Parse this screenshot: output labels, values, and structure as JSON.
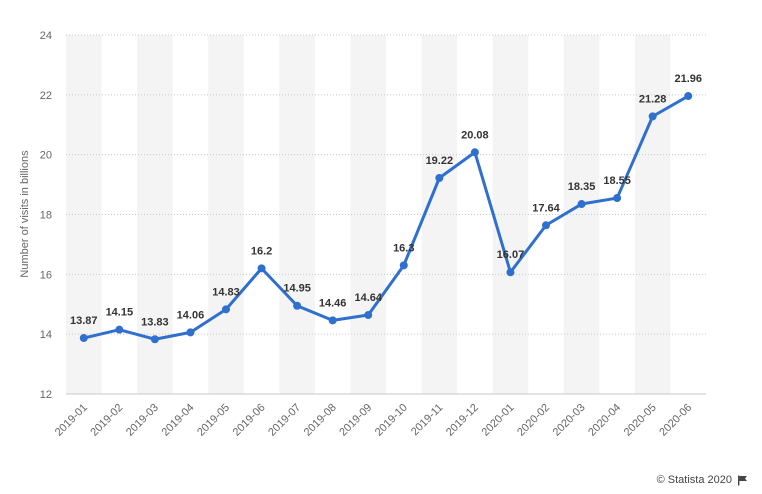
{
  "credit": "© Statista 2020",
  "colors": {
    "line": "#2f6fce",
    "band": "#f4f4f4",
    "grid": "#c8c8c8",
    "axis_text": "#666666",
    "label_text": "#333333"
  },
  "chart_data": {
    "type": "line",
    "ylabel": "Number of visits in billions",
    "ylim": [
      12,
      24
    ],
    "yticks": [
      12,
      14,
      16,
      18,
      20,
      22,
      24
    ],
    "grid": true,
    "categories": [
      "2019-01",
      "2019-02",
      "2019-03",
      "2019-04",
      "2019-05",
      "2019-06",
      "2019-07",
      "2019-08",
      "2019-09",
      "2019-10",
      "2019-11",
      "2019-12",
      "2020-01",
      "2020-02",
      "2020-03",
      "2020-04",
      "2020-05",
      "2020-06"
    ],
    "values": [
      13.87,
      14.15,
      13.83,
      14.06,
      14.83,
      16.2,
      14.95,
      14.46,
      14.64,
      16.3,
      19.22,
      20.08,
      16.07,
      17.64,
      18.35,
      18.55,
      21.28,
      21.96
    ],
    "data_labels": [
      "13.87",
      "14.15",
      "13.83",
      "14.06",
      "14.83",
      "16.2",
      "14.95",
      "14.46",
      "14.64",
      "16.3",
      "19.22",
      "20.08",
      "16.07",
      "17.64",
      "18.35",
      "18.55",
      "21.28",
      "21.96"
    ]
  }
}
